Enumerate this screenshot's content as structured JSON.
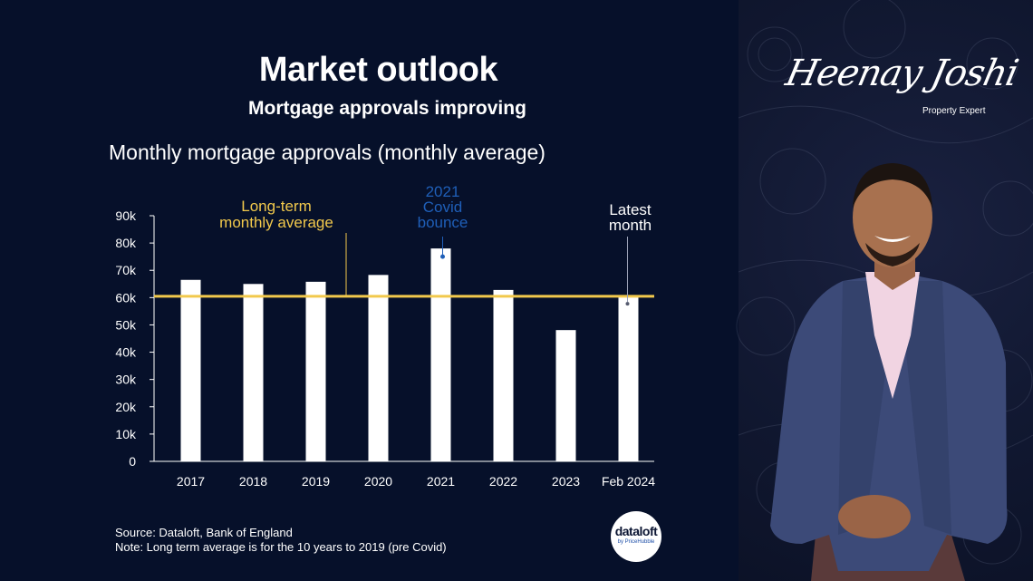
{
  "header": {
    "title": "Market outlook",
    "subtitle": "Mortgage approvals improving"
  },
  "chart_data": {
    "type": "bar",
    "title": "Monthly mortgage approvals (monthly average)",
    "categories": [
      "2017",
      "2018",
      "2019",
      "2020",
      "2021",
      "2022",
      "2023",
      "Feb 2024"
    ],
    "values": [
      66500,
      65000,
      65800,
      68300,
      78000,
      62800,
      48100,
      60400
    ],
    "y_ticks": [
      "0",
      "10k",
      "20k",
      "30k",
      "40k",
      "50k",
      "60k",
      "70k",
      "80k",
      "90k"
    ],
    "ylim": [
      0,
      90000
    ],
    "grid": false,
    "reference_line": {
      "value": 60500,
      "label_line1": "Long-term",
      "label_line2": "monthly average",
      "color": "#f2c94c"
    },
    "annotations": [
      {
        "line1": "2021",
        "line2": "Covid",
        "line3": "bounce",
        "category": "2021",
        "color": "#1f5fb8"
      },
      {
        "line1": "Latest",
        "line2": "month",
        "category": "Feb 2024",
        "color": "#ffffff"
      }
    ],
    "colors": {
      "bar": "#ffffff",
      "axis": "#ffffff",
      "background": "#06102a"
    }
  },
  "footer": {
    "source": "Source: Dataloft, Bank of England",
    "note": "Note: Long term average is for the 10 years to 2019 (pre Covid)"
  },
  "logo": {
    "main": "dataloft",
    "sub": "by PriceHubble"
  },
  "branding": {
    "signature": "Heenay Joshi",
    "role": "Property Expert"
  }
}
